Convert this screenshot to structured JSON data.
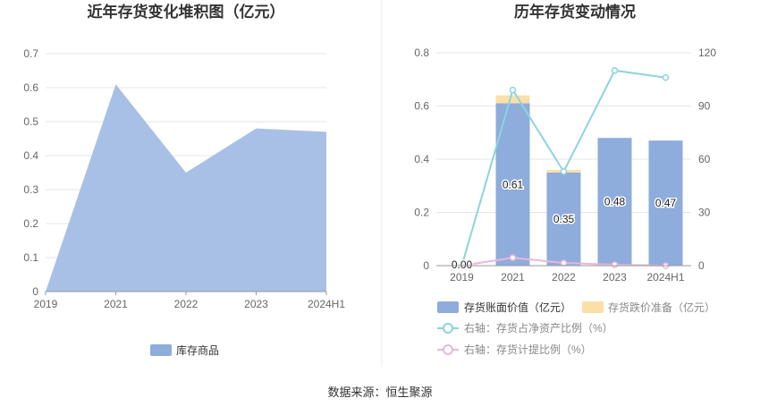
{
  "source": "数据来源：恒生聚源",
  "chart_data": [
    {
      "type": "area",
      "title": "近年存货变化堆积图（亿元）",
      "categories": [
        "2019",
        "2021",
        "2022",
        "2023",
        "2024H1"
      ],
      "series": [
        {
          "name": "库存商品",
          "values": [
            0,
            0.61,
            0.35,
            0.48,
            0.47
          ],
          "color": "#a9c0e6"
        }
      ],
      "ylim": [
        0,
        0.7
      ],
      "yticks": [
        "0",
        "0.1",
        "0.2",
        "0.3",
        "0.4",
        "0.5",
        "0.6",
        "0.7"
      ],
      "grid": true,
      "legend_position": "bottom"
    },
    {
      "type": "bar",
      "title": "历年存货变动情况",
      "categories": [
        "2019",
        "2021",
        "2022",
        "2023",
        "2024H1"
      ],
      "series": [
        {
          "name": "存货账面价值（亿元）",
          "values": [
            0,
            0.61,
            0.35,
            0.48,
            0.47
          ],
          "labels": [
            "0.00",
            "0.61",
            "0.35",
            "0.48",
            "0.47"
          ],
          "color": "#8eacdc",
          "axis": "left",
          "kind": "bar"
        },
        {
          "name": "存货跌价准备（亿元）",
          "values": [
            0,
            0.03,
            0.01,
            0,
            0
          ],
          "color": "#fbdfa9",
          "axis": "left",
          "kind": "bar-stacked"
        },
        {
          "name": "右轴：存货占净资产比例（%）",
          "values": [
            0,
            99,
            53,
            110,
            106
          ],
          "color": "#8dd4dc",
          "axis": "right",
          "kind": "line"
        },
        {
          "name": "右轴：存货计提比例（%）",
          "values": [
            0,
            4.5,
            1.5,
            0.5,
            0
          ],
          "color": "#e8b6dc",
          "axis": "right",
          "kind": "line"
        }
      ],
      "ylim_left": [
        0,
        0.8
      ],
      "yticks_left": [
        "0",
        "0.2",
        "0.4",
        "0.6",
        "0.8"
      ],
      "ylim_right": [
        0,
        120
      ],
      "yticks_right": [
        "0",
        "30",
        "60",
        "90",
        "120"
      ],
      "grid": true,
      "legend_position": "bottom"
    }
  ]
}
